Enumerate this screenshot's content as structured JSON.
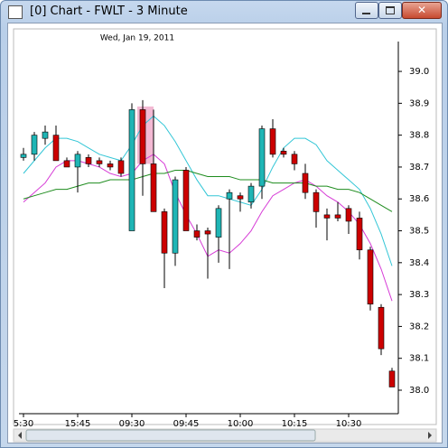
{
  "window": {
    "title": "[0]  Chart - FWLT - 3 Minute"
  },
  "chart_data": {
    "type": "candlestick",
    "subtitle": "Wed, Jan 19, 2011",
    "categories": [
      "5:30",
      null,
      null,
      null,
      null,
      "15:45",
      null,
      null,
      null,
      null,
      "09:30",
      null,
      null,
      null,
      null,
      "09:45",
      null,
      null,
      null,
      null,
      "10:00",
      null,
      null,
      null,
      null,
      "10:15",
      null,
      null,
      null,
      null,
      "10:30",
      null,
      null,
      null,
      null
    ],
    "open": [
      38.73,
      38.74,
      38.79,
      38.8,
      38.72,
      38.7,
      38.73,
      38.72,
      38.71,
      38.72,
      38.5,
      38.88,
      38.71,
      38.56,
      38.43,
      38.69,
      38.5,
      38.5,
      38.48,
      38.6,
      38.61,
      38.59,
      38.64,
      38.82,
      38.75,
      38.74,
      38.68,
      38.62,
      38.55,
      38.55,
      38.57,
      38.54,
      38.44,
      38.26,
      38.06
    ],
    "high": [
      38.76,
      38.81,
      38.83,
      38.83,
      38.73,
      38.75,
      38.74,
      38.73,
      38.72,
      38.73,
      38.9,
      38.91,
      38.88,
      38.57,
      38.67,
      38.7,
      38.52,
      38.51,
      38.58,
      38.63,
      38.62,
      38.65,
      38.83,
      38.85,
      38.76,
      38.75,
      38.71,
      38.63,
      38.57,
      38.59,
      38.58,
      38.56,
      38.45,
      38.27,
      38.07
    ],
    "low": [
      38.72,
      38.72,
      38.77,
      38.72,
      38.7,
      38.62,
      38.7,
      38.7,
      38.69,
      38.67,
      38.5,
      38.61,
      38.56,
      38.32,
      38.39,
      38.5,
      38.47,
      38.35,
      38.4,
      38.38,
      38.56,
      38.57,
      38.6,
      38.73,
      38.73,
      38.69,
      38.6,
      38.51,
      38.47,
      38.53,
      38.49,
      38.41,
      38.25,
      38.11,
      38.01
    ],
    "close": [
      38.74,
      38.8,
      38.81,
      38.72,
      38.7,
      38.74,
      38.71,
      38.71,
      38.7,
      38.68,
      38.88,
      38.71,
      38.56,
      38.43,
      38.66,
      38.5,
      38.48,
      38.49,
      38.57,
      38.62,
      38.6,
      38.64,
      38.82,
      38.74,
      38.74,
      38.71,
      38.62,
      38.56,
      38.54,
      38.54,
      38.53,
      38.44,
      38.27,
      38.13,
      38.01
    ],
    "up_color": "#1fb5b5",
    "down_color": "#cc0000",
    "series": [
      {
        "color": "#33c6d6",
        "values": [
          38.68,
          38.72,
          38.76,
          38.79,
          38.79,
          38.78,
          38.76,
          38.74,
          38.73,
          38.72,
          38.77,
          38.83,
          38.86,
          38.83,
          38.78,
          38.72,
          38.66,
          38.61,
          38.61,
          38.6,
          38.59,
          38.58,
          38.63,
          38.7,
          38.76,
          38.79,
          38.79,
          38.77,
          38.72,
          38.69,
          38.66,
          38.63,
          38.57,
          38.49,
          38.39
        ]
      },
      {
        "color": "#d63bd6",
        "values": [
          38.59,
          38.62,
          38.65,
          38.7,
          38.72,
          38.72,
          38.71,
          38.7,
          38.68,
          38.67,
          38.68,
          38.72,
          38.74,
          38.71,
          38.62,
          38.55,
          38.49,
          38.42,
          38.44,
          38.43,
          38.46,
          38.5,
          38.56,
          38.61,
          38.63,
          38.65,
          38.66,
          38.64,
          38.61,
          38.59,
          38.56,
          38.52,
          38.46,
          38.38,
          38.28
        ]
      },
      {
        "color": "#1e8c1e",
        "values": [
          38.6,
          38.61,
          38.62,
          38.63,
          38.63,
          38.64,
          38.65,
          38.65,
          38.66,
          38.66,
          38.66,
          38.67,
          38.68,
          38.68,
          38.69,
          38.69,
          38.68,
          38.67,
          38.67,
          38.67,
          38.66,
          38.66,
          38.66,
          38.65,
          38.65,
          38.65,
          38.65,
          38.64,
          38.64,
          38.63,
          38.63,
          38.62,
          38.6,
          38.58,
          38.56
        ]
      }
    ],
    "ylim": [
      37.915,
      39.105
    ],
    "yticks": [
      {
        "value": 38,
        "label": "38.0"
      },
      38.1,
      38.2,
      38.3,
      38.4,
      38.5,
      38.6,
      38.7,
      38.8,
      38.9,
      {
        "value": 39,
        "label": "39.0"
      }
    ]
  }
}
